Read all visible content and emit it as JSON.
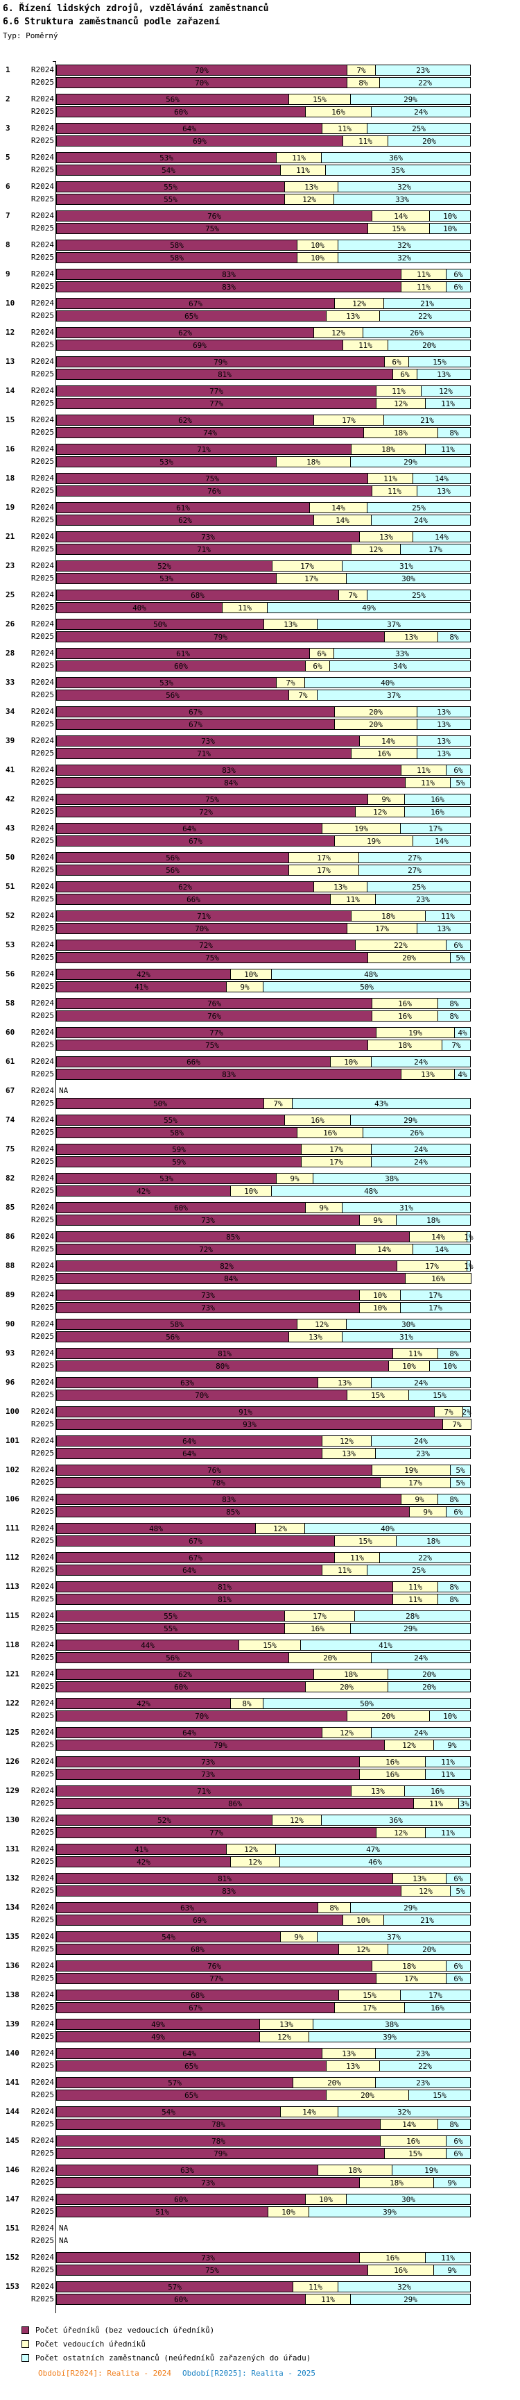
{
  "header": {
    "title_line1": "6. Řízení lidských zdrojů, vzdělávání zaměstnanců",
    "title_line2": "6.6 Struktura zaměstnanců podle zařazení",
    "type_label": "Typ: Poměrný"
  },
  "chart_data": {
    "type": "bar",
    "orientation": "horizontal",
    "stacked": true,
    "unit": "%",
    "xlim": [
      0,
      100
    ],
    "grid": false,
    "na_text": "NA",
    "series_labels": [
      "R2024",
      "R2025"
    ],
    "categories": [
      "Počet úředníků (bez vedoucích úředníků)",
      "Počet vedoucích úředníků",
      "Počet ostatních zaměstnanců (neúředníků zařazených do úřadu)"
    ],
    "colors": [
      "#993366",
      "#FFFFCC",
      "#CCFFFF"
    ],
    "groups": [
      {
        "id": "1",
        "R2024": [
          70,
          7,
          23
        ],
        "R2025": [
          70,
          8,
          22
        ]
      },
      {
        "id": "2",
        "R2024": [
          56,
          15,
          29
        ],
        "R2025": [
          60,
          16,
          24
        ]
      },
      {
        "id": "3",
        "R2024": [
          64,
          11,
          25
        ],
        "R2025": [
          69,
          11,
          20
        ]
      },
      {
        "id": "5",
        "R2024": [
          53,
          11,
          36
        ],
        "R2025": [
          54,
          11,
          35
        ]
      },
      {
        "id": "6",
        "R2024": [
          55,
          13,
          32
        ],
        "R2025": [
          55,
          12,
          33
        ]
      },
      {
        "id": "7",
        "R2024": [
          76,
          14,
          10
        ],
        "R2025": [
          75,
          15,
          10
        ]
      },
      {
        "id": "8",
        "R2024": [
          58,
          10,
          32
        ],
        "R2025": [
          58,
          10,
          32
        ]
      },
      {
        "id": "9",
        "R2024": [
          83,
          11,
          6
        ],
        "R2025": [
          83,
          11,
          6
        ]
      },
      {
        "id": "10",
        "R2024": [
          67,
          12,
          21
        ],
        "R2025": [
          65,
          13,
          22
        ]
      },
      {
        "id": "12",
        "R2024": [
          62,
          12,
          26
        ],
        "R2025": [
          69,
          11,
          20
        ]
      },
      {
        "id": "13",
        "R2024": [
          79,
          6,
          15
        ],
        "R2025": [
          81,
          6,
          13
        ]
      },
      {
        "id": "14",
        "R2024": [
          77,
          11,
          12
        ],
        "R2025": [
          77,
          12,
          11
        ]
      },
      {
        "id": "15",
        "R2024": [
          62,
          17,
          21
        ],
        "R2025": [
          74,
          18,
          8
        ]
      },
      {
        "id": "16",
        "R2024": [
          71,
          18,
          11
        ],
        "R2025": [
          53,
          18,
          29
        ]
      },
      {
        "id": "18",
        "R2024": [
          75,
          11,
          14
        ],
        "R2025": [
          76,
          11,
          13
        ]
      },
      {
        "id": "19",
        "R2024": [
          61,
          14,
          25
        ],
        "R2025": [
          62,
          14,
          24
        ]
      },
      {
        "id": "21",
        "R2024": [
          73,
          13,
          14
        ],
        "R2025": [
          71,
          12,
          17
        ]
      },
      {
        "id": "23",
        "R2024": [
          52,
          17,
          31
        ],
        "R2025": [
          53,
          17,
          30
        ]
      },
      {
        "id": "25",
        "R2024": [
          68,
          7,
          25
        ],
        "R2025": [
          40,
          11,
          49
        ]
      },
      {
        "id": "26",
        "R2024": [
          50,
          13,
          37
        ],
        "R2025": [
          79,
          13,
          8
        ]
      },
      {
        "id": "28",
        "R2024": [
          61,
          6,
          33
        ],
        "R2025": [
          60,
          6,
          34
        ]
      },
      {
        "id": "33",
        "R2024": [
          53,
          7,
          40
        ],
        "R2025": [
          56,
          7,
          37
        ]
      },
      {
        "id": "34",
        "R2024": [
          67,
          20,
          13
        ],
        "R2025": [
          67,
          20,
          13
        ]
      },
      {
        "id": "39",
        "R2024": [
          73,
          14,
          13
        ],
        "R2025": [
          71,
          16,
          13
        ]
      },
      {
        "id": "41",
        "R2024": [
          83,
          11,
          6
        ],
        "R2025": [
          84,
          11,
          5
        ]
      },
      {
        "id": "42",
        "R2024": [
          75,
          9,
          16
        ],
        "R2025": [
          72,
          12,
          16
        ]
      },
      {
        "id": "43",
        "R2024": [
          64,
          19,
          17
        ],
        "R2025": [
          67,
          19,
          14
        ]
      },
      {
        "id": "50",
        "R2024": [
          56,
          17,
          27
        ],
        "R2025": [
          56,
          17,
          27
        ]
      },
      {
        "id": "51",
        "R2024": [
          62,
          13,
          25
        ],
        "R2025": [
          66,
          11,
          23
        ]
      },
      {
        "id": "52",
        "R2024": [
          71,
          18,
          11
        ],
        "R2025": [
          70,
          17,
          13
        ]
      },
      {
        "id": "53",
        "R2024": [
          72,
          22,
          6
        ],
        "R2025": [
          75,
          20,
          5
        ]
      },
      {
        "id": "56",
        "R2024": [
          42,
          10,
          48
        ],
        "R2025": [
          41,
          9,
          50
        ]
      },
      {
        "id": "58",
        "R2024": [
          76,
          16,
          8
        ],
        "R2025": [
          76,
          16,
          8
        ]
      },
      {
        "id": "60",
        "R2024": [
          77,
          19,
          4
        ],
        "R2025": [
          75,
          18,
          7
        ]
      },
      {
        "id": "61",
        "R2024": [
          66,
          10,
          24
        ],
        "R2025": [
          83,
          13,
          4
        ]
      },
      {
        "id": "67",
        "R2024": "NA",
        "R2025": [
          50,
          7,
          43
        ]
      },
      {
        "id": "74",
        "R2024": [
          55,
          16,
          29
        ],
        "R2025": [
          58,
          16,
          26
        ]
      },
      {
        "id": "75",
        "R2024": [
          59,
          17,
          24
        ],
        "R2025": [
          59,
          17,
          24
        ]
      },
      {
        "id": "82",
        "R2024": [
          53,
          9,
          38
        ],
        "R2025": [
          42,
          10,
          48
        ]
      },
      {
        "id": "85",
        "R2024": [
          60,
          9,
          31
        ],
        "R2025": [
          73,
          9,
          18
        ]
      },
      {
        "id": "86",
        "R2024": [
          85,
          14,
          1
        ],
        "R2025": [
          72,
          14,
          14
        ]
      },
      {
        "id": "88",
        "R2024": [
          82,
          17,
          1
        ],
        "R2025": [
          84,
          16,
          0
        ]
      },
      {
        "id": "89",
        "R2024": [
          73,
          10,
          17
        ],
        "R2025": [
          73,
          10,
          17
        ]
      },
      {
        "id": "90",
        "R2024": [
          58,
          12,
          30
        ],
        "R2025": [
          56,
          13,
          31
        ]
      },
      {
        "id": "93",
        "R2024": [
          81,
          11,
          8
        ],
        "R2025": [
          80,
          10,
          10
        ]
      },
      {
        "id": "96",
        "R2024": [
          63,
          13,
          24
        ],
        "R2025": [
          70,
          15,
          15
        ]
      },
      {
        "id": "100",
        "R2024": [
          91,
          7,
          2
        ],
        "R2025": [
          93,
          7,
          0
        ]
      },
      {
        "id": "101",
        "R2024": [
          64,
          12,
          24
        ],
        "R2025": [
          64,
          13,
          23
        ]
      },
      {
        "id": "102",
        "R2024": [
          76,
          19,
          5
        ],
        "R2025": [
          78,
          17,
          5
        ]
      },
      {
        "id": "106",
        "R2024": [
          83,
          9,
          8
        ],
        "R2025": [
          85,
          9,
          6
        ]
      },
      {
        "id": "111",
        "R2024": [
          48,
          12,
          40
        ],
        "R2025": [
          67,
          15,
          18
        ]
      },
      {
        "id": "112",
        "R2024": [
          67,
          11,
          22
        ],
        "R2025": [
          64,
          11,
          25
        ]
      },
      {
        "id": "113",
        "R2024": [
          81,
          11,
          8
        ],
        "R2025": [
          81,
          11,
          8
        ]
      },
      {
        "id": "115",
        "R2024": [
          55,
          17,
          28
        ],
        "R2025": [
          55,
          16,
          29
        ]
      },
      {
        "id": "118",
        "R2024": [
          44,
          15,
          41
        ],
        "R2025": [
          56,
          20,
          24
        ]
      },
      {
        "id": "121",
        "R2024": [
          62,
          18,
          20
        ],
        "R2025": [
          60,
          20,
          20
        ]
      },
      {
        "id": "122",
        "R2024": [
          42,
          8,
          50
        ],
        "R2025": [
          70,
          20,
          10
        ]
      },
      {
        "id": "125",
        "R2024": [
          64,
          12,
          24
        ],
        "R2025": [
          79,
          12,
          9
        ]
      },
      {
        "id": "126",
        "R2024": [
          73,
          16,
          11
        ],
        "R2025": [
          73,
          16,
          11
        ]
      },
      {
        "id": "129",
        "R2024": [
          71,
          13,
          16
        ],
        "R2025": [
          86,
          11,
          3
        ]
      },
      {
        "id": "130",
        "R2024": [
          52,
          12,
          36
        ],
        "R2025": [
          77,
          12,
          11
        ]
      },
      {
        "id": "131",
        "R2024": [
          41,
          12,
          47
        ],
        "R2025": [
          42,
          12,
          46
        ]
      },
      {
        "id": "132",
        "R2024": [
          81,
          13,
          6
        ],
        "R2025": [
          83,
          12,
          5
        ]
      },
      {
        "id": "134",
        "R2024": [
          63,
          8,
          29
        ],
        "R2025": [
          69,
          10,
          21
        ]
      },
      {
        "id": "135",
        "R2024": [
          54,
          9,
          37
        ],
        "R2025": [
          68,
          12,
          20
        ]
      },
      {
        "id": "136",
        "R2024": [
          76,
          18,
          6
        ],
        "R2025": [
          77,
          17,
          6
        ]
      },
      {
        "id": "138",
        "R2024": [
          68,
          15,
          17
        ],
        "R2025": [
          67,
          17,
          16
        ]
      },
      {
        "id": "139",
        "R2024": [
          49,
          13,
          38
        ],
        "R2025": [
          49,
          12,
          39
        ]
      },
      {
        "id": "140",
        "R2024": [
          64,
          13,
          23
        ],
        "R2025": [
          65,
          13,
          22
        ]
      },
      {
        "id": "141",
        "R2024": [
          57,
          20,
          23
        ],
        "R2025": [
          65,
          20,
          15
        ]
      },
      {
        "id": "144",
        "R2024": [
          54,
          14,
          32
        ],
        "R2025": [
          78,
          14,
          8
        ]
      },
      {
        "id": "145",
        "R2024": [
          78,
          16,
          6
        ],
        "R2025": [
          79,
          15,
          6
        ]
      },
      {
        "id": "146",
        "R2024": [
          63,
          18,
          19
        ],
        "R2025": [
          73,
          18,
          9
        ]
      },
      {
        "id": "147",
        "R2024": [
          60,
          10,
          30
        ],
        "R2025": [
          51,
          10,
          39
        ]
      },
      {
        "id": "151",
        "R2024": "NA",
        "R2025": "NA"
      },
      {
        "id": "152",
        "R2024": [
          73,
          16,
          11
        ],
        "R2025": [
          75,
          16,
          9
        ]
      },
      {
        "id": "153",
        "R2024": [
          57,
          11,
          32
        ],
        "R2025": [
          60,
          11,
          29
        ]
      }
    ],
    "legend_position": "bottom"
  },
  "legend": {
    "items": [
      {
        "label": "Počet úředníků (bez vedoucích úředníků)",
        "color": "#993366"
      },
      {
        "label": "Počet vedoucích úředníků",
        "color": "#FFFFCC"
      },
      {
        "label": "Počet ostatních zaměstnanců (neúředníků zařazených do úřadu)",
        "color": "#CCFFFF"
      }
    ]
  },
  "footer": {
    "left_label": "Období[R2024]: Realita - 2024",
    "left_color": "#F07D1A",
    "right_label": "Období[R2025]: Realita - 2025",
    "right_color": "#1A82C4"
  }
}
